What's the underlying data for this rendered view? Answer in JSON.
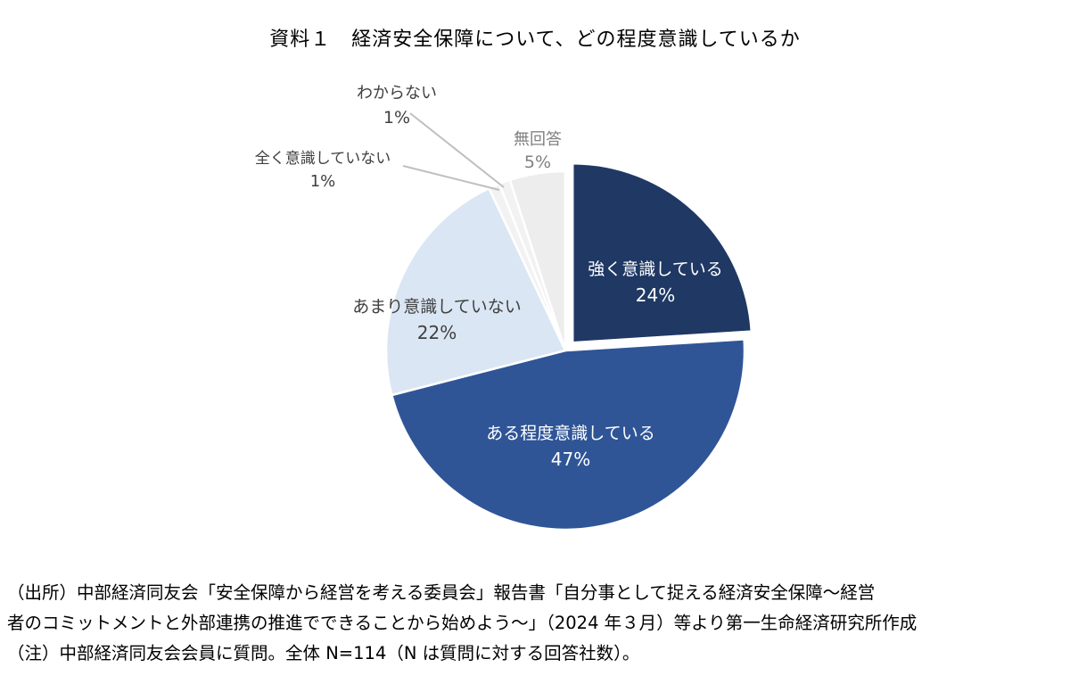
{
  "chart_data": {
    "type": "pie",
    "title": "資料１　経済安全保障について、どの程度意識しているか",
    "start_angle_deg": 0,
    "direction": "clockwise",
    "slices": [
      {
        "label": "強く意識している",
        "pct_label": "24%",
        "value": 24,
        "color": "#1f3864",
        "text_color": "#ffffff"
      },
      {
        "label": "ある程度意識している",
        "pct_label": "47%",
        "value": 47,
        "color": "#2f5597",
        "text_color": "#ffffff"
      },
      {
        "label": "あまり意識していない",
        "pct_label": "22%",
        "value": 22,
        "color": "#dae6f4",
        "text_color": "#404040"
      },
      {
        "label": "全く意識していない",
        "pct_label": "1%",
        "value": 1,
        "color": "#f2f2f2",
        "text_color": "#404040"
      },
      {
        "label": "わからない",
        "pct_label": "1%",
        "value": 1,
        "color": "#f2f2f2",
        "text_color": "#404040"
      },
      {
        "label": "無回答",
        "pct_label": "5%",
        "value": 5,
        "color": "#ededed",
        "text_color": "#808080"
      }
    ]
  },
  "notes": {
    "line1": "（出所）中部経済同友会「安全保障から経営を考える委員会」報告書「自分事として捉える経済安全保障～経営",
    "line2": "者のコミットメントと外部連携の推進でできることから始めよう～」（2024 年３月）等より第一生命経済研究所作成",
    "line3": "（注）中部経済同友会会員に質問。全体 N=114（N は質問に対する回答社数）。"
  }
}
